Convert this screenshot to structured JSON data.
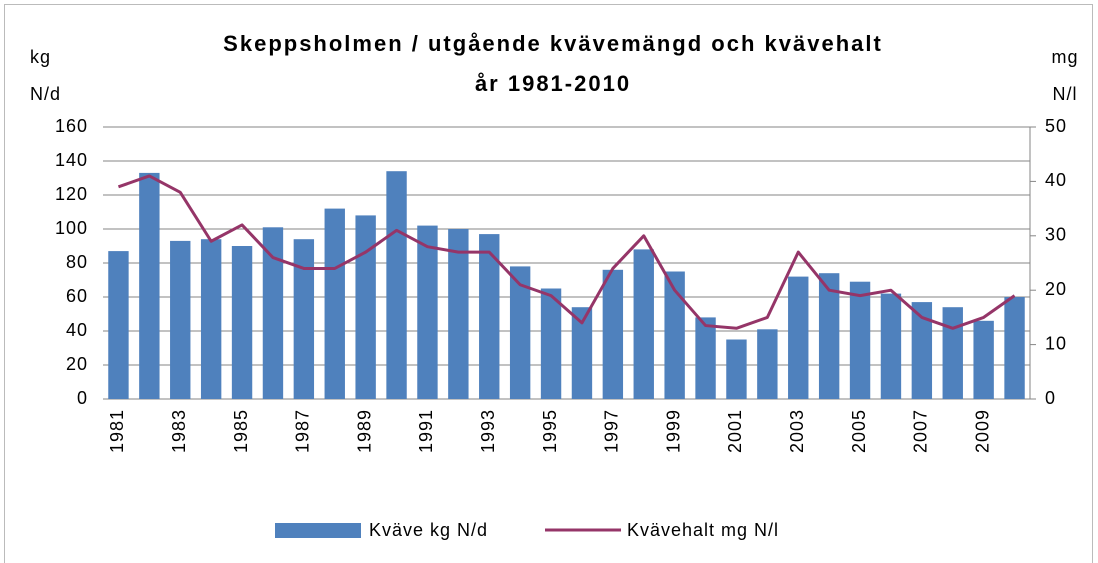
{
  "chart_data": {
    "type": "bar",
    "title": [
      "Skeppsholmen / utgående kvävemängd och kvävehalt",
      "år 1981-2010"
    ],
    "y_label": [
      "kg",
      "N/d"
    ],
    "y2_label": [
      "mg",
      "N/l"
    ],
    "categories": [
      "1981",
      null,
      "1983",
      null,
      "1985",
      null,
      "1987",
      null,
      "1989",
      null,
      "1991",
      null,
      "1993",
      null,
      "1995",
      null,
      "1997",
      null,
      "1999",
      null,
      "2001",
      null,
      "2003",
      null,
      "2005",
      null,
      "2007",
      null,
      "2009",
      null
    ],
    "series": [
      {
        "name": "Kväve kg N/d",
        "type": "bar",
        "color": "#4f81bd",
        "values": [
          87,
          133,
          93,
          94,
          90,
          101,
          94,
          112,
          108,
          134,
          102,
          100,
          97,
          78,
          65,
          54,
          76,
          88,
          75,
          48,
          35,
          41,
          72,
          74,
          69,
          62,
          57,
          54,
          46,
          60
        ]
      },
      {
        "name": "Kvävehalt mg N/l",
        "type": "line",
        "axis": "y2",
        "color": "#953568",
        "values": [
          39,
          41,
          38,
          29,
          32,
          26,
          24,
          24,
          27,
          31,
          28,
          27,
          27,
          21,
          19,
          14,
          24,
          30,
          20,
          13.5,
          13,
          15,
          27,
          20,
          19,
          20,
          15,
          13,
          15,
          19
        ]
      }
    ],
    "ylim": [
      0,
      160
    ],
    "yticks": [
      0,
      20,
      40,
      60,
      80,
      100,
      120,
      140,
      160
    ],
    "y2lim": [
      0,
      50
    ],
    "y2ticks": [
      0,
      10,
      20,
      30,
      40,
      50
    ],
    "grid": true,
    "legend": "bottom"
  }
}
